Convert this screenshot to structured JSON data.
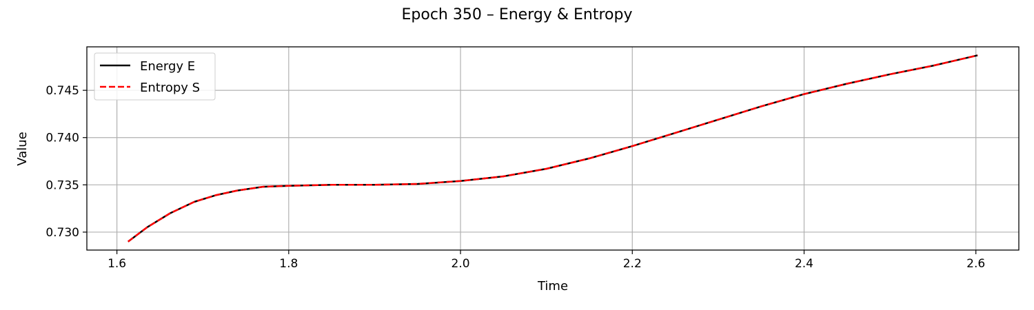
{
  "chart_data": {
    "type": "line",
    "title": "Epoch 350 – Energy & Entropy",
    "xlabel": "Time",
    "ylabel": "Value",
    "xlim": [
      1.565,
      2.65
    ],
    "ylim": [
      0.7281,
      0.7496
    ],
    "xticks": [
      1.6,
      1.8,
      2.0,
      2.2,
      2.4,
      2.6
    ],
    "xtick_labels": [
      "1.6",
      "1.8",
      "2.0",
      "2.2",
      "2.4",
      "2.6"
    ],
    "yticks": [
      0.73,
      0.735,
      0.74,
      0.745
    ],
    "ytick_labels": [
      "0.730",
      "0.735",
      "0.740",
      "0.745"
    ],
    "grid": true,
    "legend": "top-left",
    "x": [
      1.613,
      1.635,
      1.662,
      1.69,
      1.715,
      1.74,
      1.77,
      1.8,
      1.85,
      1.9,
      1.95,
      2.0,
      2.05,
      2.1,
      2.15,
      2.2,
      2.25,
      2.3,
      2.35,
      2.4,
      2.45,
      2.5,
      2.55,
      2.602
    ],
    "series": [
      {
        "name": "Energy E",
        "color": "#000000",
        "style": "solid",
        "values": [
          0.729,
          0.7305,
          0.732,
          0.7332,
          0.7339,
          0.7344,
          0.7348,
          0.7349,
          0.735,
          0.735,
          0.7351,
          0.7354,
          0.7359,
          0.7367,
          0.7378,
          0.7391,
          0.7405,
          0.7419,
          0.7433,
          0.7446,
          0.7457,
          0.7467,
          0.7476,
          0.7487
        ]
      },
      {
        "name": "Entropy S",
        "color": "#ff0000",
        "style": "dashed",
        "values": [
          0.729,
          0.7305,
          0.732,
          0.7332,
          0.7339,
          0.7344,
          0.7348,
          0.7349,
          0.735,
          0.735,
          0.7351,
          0.7354,
          0.7359,
          0.7367,
          0.7378,
          0.7391,
          0.7405,
          0.7419,
          0.7433,
          0.7446,
          0.7457,
          0.7467,
          0.7476,
          0.7487
        ]
      }
    ]
  }
}
